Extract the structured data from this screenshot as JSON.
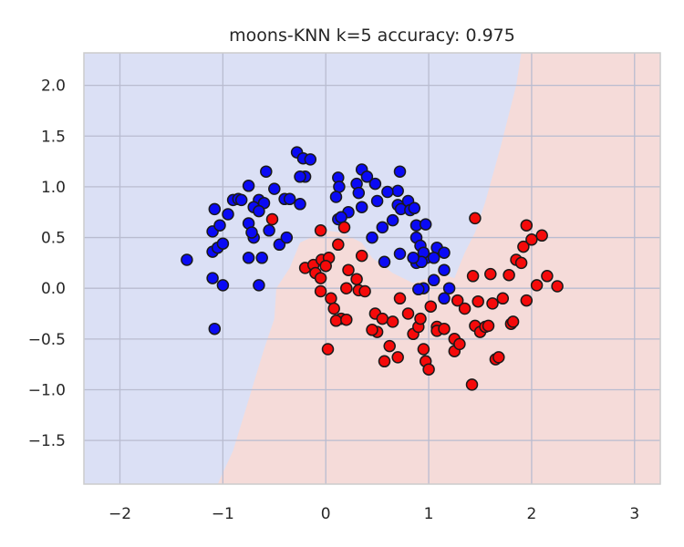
{
  "chart_data": {
    "type": "scatter",
    "title": "moons-KNN k=5 accuracy: 0.975",
    "xlabel": "",
    "ylabel": "",
    "xlim": [
      -2.35,
      3.25
    ],
    "ylim": [
      -1.93,
      2.32
    ],
    "xticks": [
      -2,
      -1,
      0,
      1,
      2,
      3
    ],
    "yticks": [
      2.0,
      1.5,
      1.0,
      0.5,
      0.0,
      -0.5,
      -1.0,
      -1.5
    ],
    "xtick_labels": [
      "−2",
      "−1",
      "0",
      "1",
      "2",
      "3"
    ],
    "ytick_labels": [
      "2.0",
      "1.5",
      "1.0",
      "0.5",
      "0.0",
      "−0.5",
      "−1.0",
      "−1.5"
    ],
    "grid": true,
    "colors": {
      "class0_point": "#0a0af5",
      "class1_point": "#f50a0a",
      "class0_region": "#dbe0f5",
      "class1_region": "#f5dbd9",
      "grid": "#b9bcd0",
      "edge": "#1a1a1a",
      "frame": "#cccccc"
    },
    "decision_boundary": [
      [
        -1.05,
        -1.93
      ],
      [
        -0.9,
        -1.6
      ],
      [
        -0.75,
        -1.1
      ],
      [
        -0.6,
        -0.6
      ],
      [
        -0.5,
        -0.3
      ],
      [
        -0.48,
        0.0
      ],
      [
        -0.35,
        0.2
      ],
      [
        -0.25,
        0.45
      ],
      [
        0.0,
        0.57
      ],
      [
        0.15,
        0.55
      ],
      [
        0.35,
        0.45
      ],
      [
        0.45,
        0.3
      ],
      [
        0.65,
        0.15
      ],
      [
        0.85,
        0.05
      ],
      [
        1.0,
        0.1
      ],
      [
        1.1,
        0.15
      ],
      [
        1.25,
        0.1
      ],
      [
        1.35,
        0.35
      ],
      [
        1.45,
        0.55
      ],
      [
        1.55,
        0.85
      ],
      [
        1.7,
        1.4
      ],
      [
        1.85,
        2.0
      ],
      [
        1.9,
        2.32
      ]
    ],
    "series": [
      {
        "name": "",
        "color": "#0a0af5",
        "points": [
          [
            -1.35,
            0.28
          ],
          [
            -1.1,
            0.1
          ],
          [
            -1.08,
            -0.4
          ],
          [
            -1.0,
            0.03
          ],
          [
            -1.1,
            0.36
          ],
          [
            -1.05,
            0.4
          ],
          [
            -1.0,
            0.44
          ],
          [
            -1.1,
            0.56
          ],
          [
            -1.03,
            0.62
          ],
          [
            -0.95,
            0.73
          ],
          [
            -1.08,
            0.78
          ],
          [
            -0.9,
            0.87
          ],
          [
            -0.85,
            0.88
          ],
          [
            -0.82,
            0.87
          ],
          [
            -0.75,
            1.01
          ],
          [
            -0.65,
            0.87
          ],
          [
            -0.7,
            0.8
          ],
          [
            -0.75,
            0.64
          ],
          [
            -0.7,
            0.5
          ],
          [
            -0.72,
            0.55
          ],
          [
            -0.75,
            0.3
          ],
          [
            -0.58,
            1.15
          ],
          [
            -0.6,
            0.84
          ],
          [
            -0.55,
            0.57
          ],
          [
            -0.45,
            0.43
          ],
          [
            -0.5,
            0.98
          ],
          [
            -0.4,
            0.88
          ],
          [
            -0.35,
            0.88
          ],
          [
            -0.38,
            0.5
          ],
          [
            -0.25,
            0.83
          ],
          [
            -0.28,
            1.34
          ],
          [
            -0.22,
            1.28
          ],
          [
            -0.2,
            1.1
          ],
          [
            -0.15,
            1.27
          ],
          [
            -0.25,
            1.1
          ],
          [
            -0.65,
            0.76
          ],
          [
            -0.62,
            0.3
          ],
          [
            -0.65,
            0.03
          ],
          [
            0.12,
            1.09
          ],
          [
            0.13,
            1.0
          ],
          [
            0.1,
            0.9
          ],
          [
            0.12,
            0.68
          ],
          [
            0.3,
            1.03
          ],
          [
            0.35,
            1.17
          ],
          [
            0.4,
            1.1
          ],
          [
            0.32,
            0.94
          ],
          [
            0.35,
            0.8
          ],
          [
            0.48,
            1.03
          ],
          [
            0.5,
            0.86
          ],
          [
            0.55,
            0.6
          ],
          [
            0.65,
            0.67
          ],
          [
            0.7,
            0.96
          ],
          [
            0.7,
            0.82
          ],
          [
            0.72,
            1.15
          ],
          [
            0.73,
            0.78
          ],
          [
            0.8,
            0.86
          ],
          [
            0.82,
            0.77
          ],
          [
            0.86,
            0.79
          ],
          [
            0.88,
            0.62
          ],
          [
            0.88,
            0.5
          ],
          [
            0.92,
            0.42
          ],
          [
            0.98,
            0.3
          ],
          [
            0.95,
            0.35
          ],
          [
            0.97,
            0.63
          ],
          [
            1.08,
            0.4
          ],
          [
            1.05,
            0.3
          ],
          [
            1.15,
            0.35
          ],
          [
            1.15,
            0.18
          ],
          [
            1.05,
            0.08
          ],
          [
            1.2,
            0.0
          ],
          [
            0.88,
            0.25
          ],
          [
            0.93,
            0.26
          ],
          [
            0.85,
            0.3
          ],
          [
            0.72,
            0.34
          ],
          [
            0.57,
            0.26
          ],
          [
            0.95,
            0.0
          ],
          [
            0.9,
            -0.01
          ],
          [
            1.15,
            -0.1
          ],
          [
            0.45,
            0.5
          ],
          [
            0.22,
            0.75
          ],
          [
            0.15,
            0.7
          ],
          [
            0.6,
            0.95
          ]
        ]
      },
      {
        "name": "",
        "color": "#f50a0a",
        "points": [
          [
            -0.52,
            0.68
          ],
          [
            -0.05,
            0.57
          ],
          [
            0.18,
            0.6
          ],
          [
            -0.2,
            0.2
          ],
          [
            -0.12,
            0.23
          ],
          [
            -0.1,
            0.15
          ],
          [
            -0.04,
            0.28
          ],
          [
            0.03,
            0.3
          ],
          [
            0.0,
            0.22
          ],
          [
            -0.05,
            0.1
          ],
          [
            -0.05,
            -0.03
          ],
          [
            0.05,
            -0.1
          ],
          [
            0.15,
            -0.3
          ],
          [
            0.1,
            -0.32
          ],
          [
            0.2,
            -0.31
          ],
          [
            0.02,
            -0.6
          ],
          [
            0.08,
            -0.2
          ],
          [
            0.2,
            0.0
          ],
          [
            0.22,
            0.18
          ],
          [
            0.3,
            0.09
          ],
          [
            0.35,
            0.32
          ],
          [
            0.32,
            -0.02
          ],
          [
            0.38,
            -0.03
          ],
          [
            0.48,
            -0.25
          ],
          [
            0.5,
            -0.43
          ],
          [
            0.55,
            -0.3
          ],
          [
            0.57,
            -0.72
          ],
          [
            0.62,
            -0.57
          ],
          [
            0.65,
            -0.33
          ],
          [
            0.72,
            -0.1
          ],
          [
            0.8,
            -0.25
          ],
          [
            0.85,
            -0.45
          ],
          [
            0.9,
            -0.38
          ],
          [
            0.92,
            -0.3
          ],
          [
            0.95,
            -0.6
          ],
          [
            0.97,
            -0.72
          ],
          [
            1.0,
            -0.8
          ],
          [
            1.02,
            -0.18
          ],
          [
            1.08,
            -0.38
          ],
          [
            1.08,
            -0.42
          ],
          [
            1.15,
            -0.4
          ],
          [
            1.25,
            -0.5
          ],
          [
            1.25,
            -0.62
          ],
          [
            1.28,
            -0.12
          ],
          [
            1.3,
            -0.55
          ],
          [
            1.35,
            -0.2
          ],
          [
            1.42,
            -0.95
          ],
          [
            1.43,
            0.12
          ],
          [
            1.45,
            -0.37
          ],
          [
            1.48,
            -0.13
          ],
          [
            1.5,
            -0.43
          ],
          [
            1.55,
            -0.38
          ],
          [
            1.58,
            -0.37
          ],
          [
            1.6,
            0.14
          ],
          [
            1.62,
            -0.15
          ],
          [
            1.65,
            -0.7
          ],
          [
            1.68,
            -0.68
          ],
          [
            1.72,
            -0.1
          ],
          [
            1.78,
            0.13
          ],
          [
            1.8,
            -0.35
          ],
          [
            1.82,
            -0.33
          ],
          [
            1.85,
            0.28
          ],
          [
            1.9,
            0.25
          ],
          [
            1.92,
            0.41
          ],
          [
            1.95,
            0.62
          ],
          [
            2.0,
            0.48
          ],
          [
            2.05,
            0.03
          ],
          [
            2.1,
            0.52
          ],
          [
            2.15,
            0.12
          ],
          [
            2.25,
            0.02
          ],
          [
            1.95,
            -0.12
          ],
          [
            1.45,
            0.69
          ],
          [
            0.7,
            -0.68
          ],
          [
            0.45,
            -0.41
          ],
          [
            0.12,
            0.43
          ]
        ]
      }
    ]
  }
}
